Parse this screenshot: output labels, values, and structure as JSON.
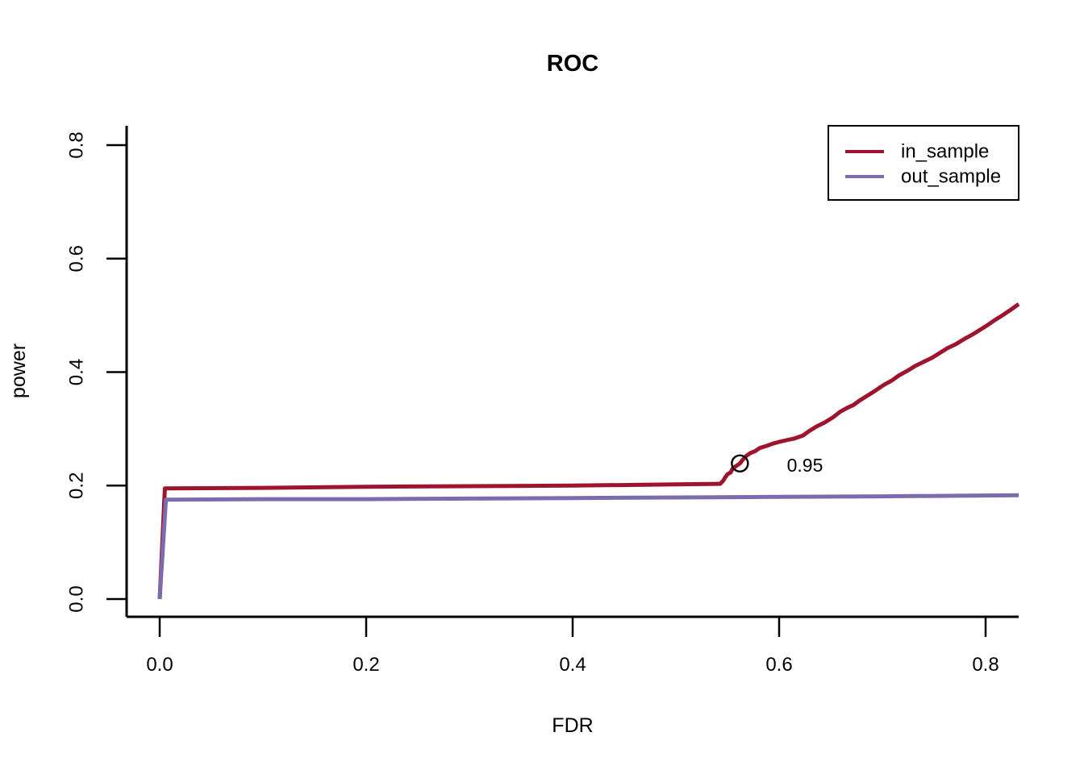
{
  "figure": {
    "background": "#ffffff",
    "axis_color": "#000000"
  },
  "chart_data": {
    "type": "line",
    "title": "ROC",
    "xlabel": "FDR",
    "ylabel": "power",
    "xlim": [
      -0.033,
      0.834
    ],
    "ylim": [
      -0.031,
      0.834
    ],
    "grid": false,
    "legend_position": "top-right",
    "xticks": {
      "values": [
        0.0,
        0.2,
        0.4,
        0.6,
        0.8
      ],
      "labels": [
        "0.0",
        "0.2",
        "0.4",
        "0.6",
        "0.8"
      ]
    },
    "yticks": {
      "values": [
        0.0,
        0.2,
        0.4,
        0.6,
        0.8
      ],
      "labels": [
        "0.0",
        "0.2",
        "0.4",
        "0.6",
        "0.8"
      ]
    },
    "series": [
      {
        "name": "in_sample",
        "color": "#9E142F",
        "width": 5,
        "points": [
          [
            0.0,
            0.0
          ],
          [
            0.005,
            0.195
          ],
          [
            0.1,
            0.196
          ],
          [
            0.2,
            0.198
          ],
          [
            0.3,
            0.199
          ],
          [
            0.4,
            0.2
          ],
          [
            0.5,
            0.202
          ],
          [
            0.543,
            0.203
          ],
          [
            0.546,
            0.209
          ],
          [
            0.548,
            0.215
          ],
          [
            0.55,
            0.22
          ],
          [
            0.553,
            0.223
          ],
          [
            0.555,
            0.23
          ],
          [
            0.558,
            0.234
          ],
          [
            0.562,
            0.239
          ],
          [
            0.565,
            0.246
          ],
          [
            0.568,
            0.252
          ],
          [
            0.572,
            0.257
          ],
          [
            0.577,
            0.261
          ],
          [
            0.581,
            0.266
          ],
          [
            0.588,
            0.27
          ],
          [
            0.594,
            0.274
          ],
          [
            0.6,
            0.277
          ],
          [
            0.607,
            0.28
          ],
          [
            0.615,
            0.283
          ],
          [
            0.623,
            0.288
          ],
          [
            0.629,
            0.296
          ],
          [
            0.636,
            0.304
          ],
          [
            0.644,
            0.311
          ],
          [
            0.652,
            0.32
          ],
          [
            0.659,
            0.33
          ],
          [
            0.666,
            0.337
          ],
          [
            0.672,
            0.342
          ],
          [
            0.678,
            0.35
          ],
          [
            0.685,
            0.358
          ],
          [
            0.693,
            0.367
          ],
          [
            0.701,
            0.377
          ],
          [
            0.709,
            0.385
          ],
          [
            0.716,
            0.394
          ],
          [
            0.724,
            0.402
          ],
          [
            0.732,
            0.411
          ],
          [
            0.74,
            0.418
          ],
          [
            0.748,
            0.425
          ],
          [
            0.755,
            0.433
          ],
          [
            0.763,
            0.442
          ],
          [
            0.771,
            0.449
          ],
          [
            0.779,
            0.458
          ],
          [
            0.787,
            0.466
          ],
          [
            0.795,
            0.475
          ],
          [
            0.802,
            0.483
          ],
          [
            0.81,
            0.493
          ],
          [
            0.818,
            0.502
          ],
          [
            0.826,
            0.512
          ],
          [
            0.832,
            0.52
          ]
        ]
      },
      {
        "name": "out_sample",
        "color": "#7C6CAF",
        "width": 5,
        "points": [
          [
            0.0,
            0.0
          ],
          [
            0.006,
            0.175
          ],
          [
            0.1,
            0.176
          ],
          [
            0.2,
            0.176
          ],
          [
            0.3,
            0.177
          ],
          [
            0.4,
            0.178
          ],
          [
            0.5,
            0.179
          ],
          [
            0.6,
            0.18
          ],
          [
            0.7,
            0.181
          ],
          [
            0.832,
            0.183
          ]
        ]
      }
    ],
    "marker": {
      "x": 0.562,
      "y": 0.239,
      "shape": "open-circle",
      "color": "#000000",
      "radius_px": 10
    },
    "annotation": {
      "label": "0.95",
      "x": 0.625,
      "y": 0.236,
      "color": "#9E142F"
    }
  },
  "legend": {
    "entries": [
      {
        "label": "in_sample",
        "color": "#9E142F"
      },
      {
        "label": "out_sample",
        "color": "#7C6CAF"
      }
    ]
  }
}
